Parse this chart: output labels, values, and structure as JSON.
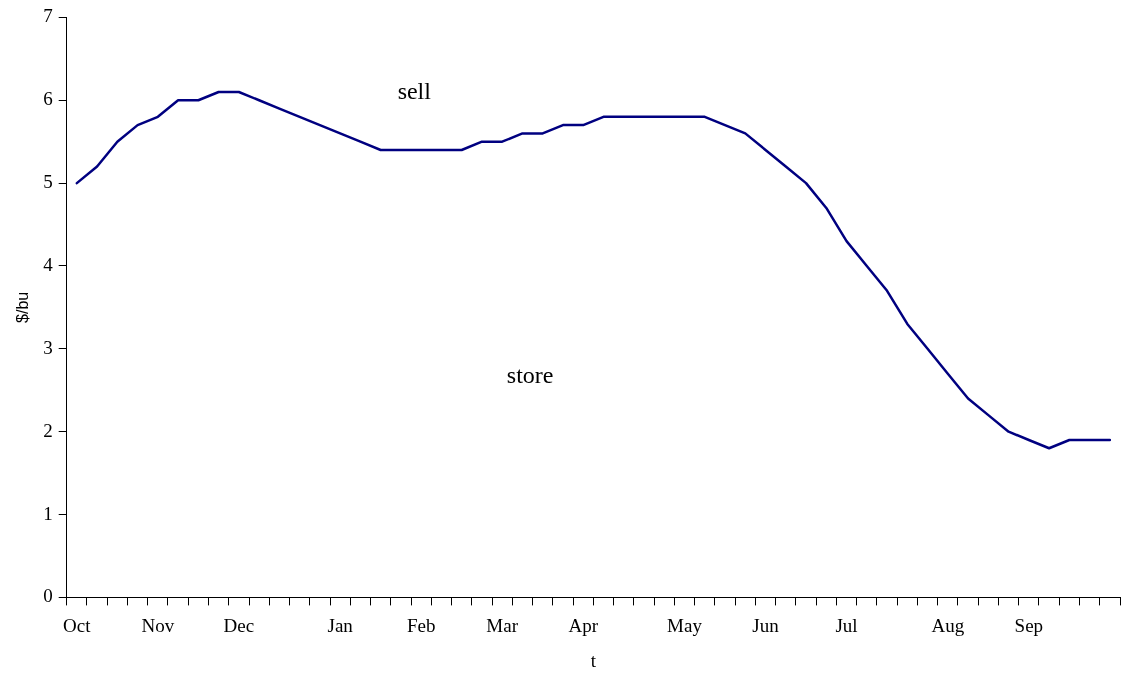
{
  "chart_data": {
    "type": "line",
    "xlabel": "t",
    "ylabel": "$/bu",
    "categories": [
      "Oct",
      null,
      null,
      null,
      "Nov",
      null,
      null,
      null,
      "Dec",
      null,
      null,
      null,
      null,
      "Jan",
      null,
      null,
      null,
      "Feb",
      null,
      null,
      null,
      "Mar",
      null,
      null,
      null,
      "Apr",
      null,
      null,
      null,
      null,
      "May",
      null,
      null,
      null,
      "Jun",
      null,
      null,
      null,
      "Jul",
      null,
      null,
      null,
      null,
      "Aug",
      null,
      null,
      null,
      "Sep",
      null,
      null,
      null,
      null
    ],
    "series": [
      {
        "color": "#000080",
        "values": [
          5.0,
          5.2,
          5.5,
          5.7,
          5.8,
          6.0,
          6.0,
          6.1,
          6.1,
          6.0,
          5.9,
          5.8,
          5.7,
          5.6,
          5.5,
          5.4,
          5.4,
          5.4,
          5.4,
          5.4,
          5.5,
          5.5,
          5.6,
          5.6,
          5.7,
          5.7,
          5.8,
          5.8,
          5.8,
          5.8,
          5.8,
          5.8,
          5.7,
          5.6,
          5.4,
          5.2,
          5.0,
          4.7,
          4.3,
          4.0,
          3.7,
          3.3,
          3.0,
          2.7,
          2.4,
          2.2,
          2.0,
          1.9,
          1.8,
          1.9,
          1.9,
          1.9
        ]
      }
    ],
    "ylim": [
      0,
      7
    ],
    "yticks": [
      0,
      1,
      2,
      3,
      4,
      5,
      6,
      7
    ],
    "annotations": [
      "sell",
      "store"
    ],
    "grid": false,
    "legend": false,
    "marker": "none",
    "line_style": "solid"
  }
}
